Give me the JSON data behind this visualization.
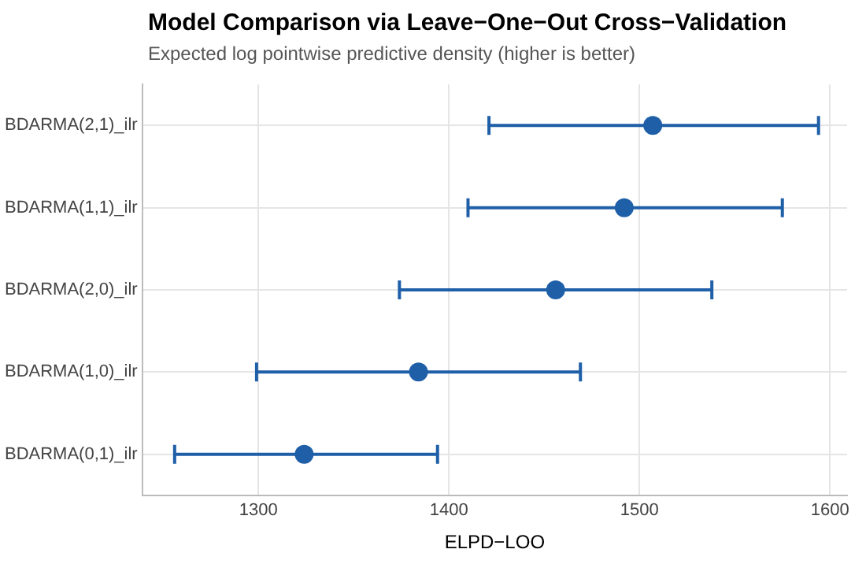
{
  "chart_data": {
    "type": "scatter",
    "orientation": "horizontal",
    "title": "Model Comparison via Leave−One−Out Cross−Validation",
    "subtitle": "Expected log pointwise predictive density (higher is better)",
    "xlabel": "ELPD−LOO",
    "categories": [
      "BDARMA(2,1)_ilr",
      "BDARMA(1,1)_ilr",
      "BDARMA(2,0)_ilr",
      "BDARMA(1,0)_ilr",
      "BDARMA(0,1)_ilr"
    ],
    "values": [
      1507,
      1492,
      1456,
      1384,
      1324
    ],
    "errors": [
      [
        1421,
        1594
      ],
      [
        1410,
        1575
      ],
      [
        1374,
        1538
      ],
      [
        1299,
        1469
      ],
      [
        1256,
        1394
      ]
    ],
    "color": "#1f5fa8",
    "marker": "circle",
    "grid": true,
    "legend": false,
    "xlim": [
      1239,
      1609
    ],
    "xticks": [
      1300,
      1400,
      1500,
      1600
    ]
  }
}
